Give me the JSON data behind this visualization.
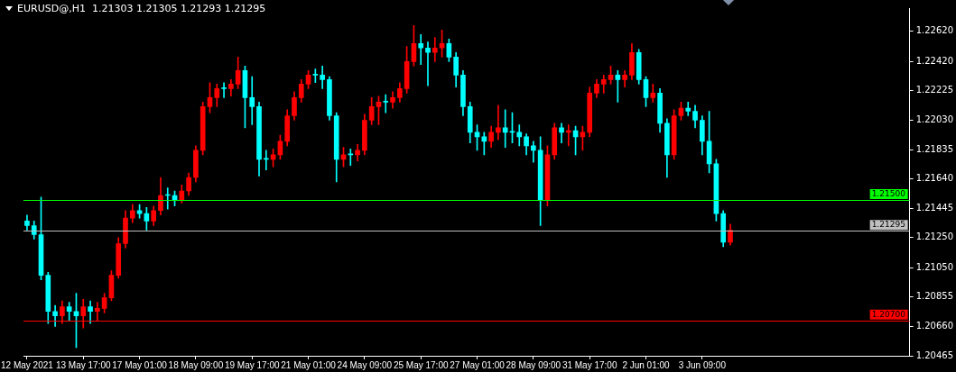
{
  "chart_data": {
    "type": "candlestick",
    "title": "EURUSD@,H1  1.21303 1.21305 1.21293 1.21295",
    "categories": [
      "12 May 2021",
      null,
      null,
      null,
      null,
      null,
      null,
      null,
      "13 May 17:00",
      null,
      null,
      null,
      null,
      null,
      null,
      null,
      "17 May 01:00",
      null,
      null,
      null,
      null,
      null,
      null,
      null,
      "18 May 09:00",
      null,
      null,
      null,
      null,
      null,
      null,
      null,
      "19 May 17:00",
      null,
      null,
      null,
      null,
      null,
      null,
      null,
      "21 May 01:00",
      null,
      null,
      null,
      null,
      null,
      null,
      null,
      "24 May 09:00",
      null,
      null,
      null,
      null,
      null,
      null,
      null,
      "25 May 17:00",
      null,
      null,
      null,
      null,
      null,
      null,
      null,
      "27 May 01:00",
      null,
      null,
      null,
      null,
      null,
      null,
      null,
      "28 May 09:00",
      null,
      null,
      null,
      null,
      null,
      null,
      null,
      "31 May 17:00",
      null,
      null,
      null,
      null,
      null,
      null,
      null,
      "2 Jun 01:00",
      null,
      null,
      null,
      null,
      null,
      null,
      null,
      "3 Jun 09:00",
      null,
      null,
      null,
      null,
      null,
      null,
      null,
      null,
      null,
      null,
      null,
      null,
      null,
      null,
      null,
      null,
      null,
      null,
      null,
      null,
      null,
      null,
      null,
      null,
      null,
      null,
      null,
      null,
      null
    ],
    "ohlc": [
      [
        1.2136,
        1.214,
        1.213,
        1.2133
      ],
      [
        1.2133,
        1.2136,
        1.2124,
        1.2127
      ],
      [
        1.2127,
        1.2152,
        1.2097,
        1.21
      ],
      [
        1.21,
        1.2102,
        1.2068,
        1.2076
      ],
      [
        1.2076,
        1.208,
        1.2066,
        1.2073
      ],
      [
        1.2073,
        1.2083,
        1.2068,
        1.2079
      ],
      [
        1.2079,
        1.2082,
        1.207,
        1.2076
      ],
      [
        1.2076,
        1.2088,
        1.2052,
        1.2073
      ],
      [
        1.2073,
        1.2084,
        1.2065,
        1.2079
      ],
      [
        1.2079,
        1.2083,
        1.2068,
        1.2076
      ],
      [
        1.2076,
        1.2082,
        1.207,
        1.2078
      ],
      [
        1.2078,
        1.2088,
        1.2075,
        1.2085
      ],
      [
        1.2085,
        1.2103,
        1.2083,
        1.21
      ],
      [
        1.21,
        1.2125,
        1.2098,
        1.2121
      ],
      [
        1.2121,
        1.2143,
        1.2118,
        1.2138
      ],
      [
        1.2138,
        1.2147,
        1.2135,
        1.2143
      ],
      [
        1.2143,
        1.2147,
        1.2138,
        1.2141
      ],
      [
        1.2141,
        1.2145,
        1.213,
        1.2136
      ],
      [
        1.2136,
        1.2146,
        1.2133,
        1.2143
      ],
      [
        1.2143,
        1.2165,
        1.214,
        1.2153
      ],
      [
        1.2153,
        1.2158,
        1.2144,
        1.2153
      ],
      [
        1.2153,
        1.2156,
        1.2146,
        1.215
      ],
      [
        1.215,
        1.216,
        1.2148,
        1.2156
      ],
      [
        1.2156,
        1.2168,
        1.2153,
        1.2165
      ],
      [
        1.2165,
        1.2186,
        1.2162,
        1.2183
      ],
      [
        1.2183,
        1.2215,
        1.218,
        1.2212
      ],
      [
        1.2212,
        1.2228,
        1.2208,
        1.2218
      ],
      [
        1.2218,
        1.2227,
        1.2212,
        1.2224
      ],
      [
        1.2224,
        1.2228,
        1.2218,
        1.2224
      ],
      [
        1.2224,
        1.223,
        1.2219,
        1.2227
      ],
      [
        1.2227,
        1.2245,
        1.2224,
        1.2236
      ],
      [
        1.2236,
        1.2239,
        1.2198,
        1.2218
      ],
      [
        1.2218,
        1.2232,
        1.22,
        1.2212
      ],
      [
        1.2212,
        1.2215,
        1.2166,
        1.2177
      ],
      [
        1.2177,
        1.2183,
        1.217,
        1.2177
      ],
      [
        1.2177,
        1.2184,
        1.2172,
        1.218
      ],
      [
        1.218,
        1.2193,
        1.2177,
        1.2189
      ],
      [
        1.2189,
        1.221,
        1.2186,
        1.2206
      ],
      [
        1.2206,
        1.2222,
        1.2203,
        1.2218
      ],
      [
        1.2218,
        1.223,
        1.2215,
        1.2227
      ],
      [
        1.2227,
        1.2236,
        1.2224,
        1.2233
      ],
      [
        1.2233,
        1.2237,
        1.2228,
        1.2233
      ],
      [
        1.2233,
        1.2239,
        1.2224,
        1.223
      ],
      [
        1.223,
        1.2232,
        1.2203,
        1.2206
      ],
      [
        1.2206,
        1.2208,
        1.2162,
        1.2177
      ],
      [
        1.2177,
        1.2185,
        1.2172,
        1.218
      ],
      [
        1.218,
        1.2184,
        1.2173,
        1.218
      ],
      [
        1.218,
        1.2187,
        1.2176,
        1.2183
      ],
      [
        1.2183,
        1.2207,
        1.218,
        1.2203
      ],
      [
        1.2203,
        1.2218,
        1.22,
        1.2212
      ],
      [
        1.2212,
        1.2219,
        1.22,
        1.2215
      ],
      [
        1.2215,
        1.222,
        1.2208,
        1.2215
      ],
      [
        1.2215,
        1.2222,
        1.2211,
        1.2218
      ],
      [
        1.2218,
        1.2228,
        1.2215,
        1.2224
      ],
      [
        1.2224,
        1.2252,
        1.2221,
        1.2242
      ],
      [
        1.2242,
        1.2266,
        1.2239,
        1.2254
      ],
      [
        1.2254,
        1.226,
        1.224,
        1.2251
      ],
      [
        1.2251,
        1.2255,
        1.2226,
        1.2248
      ],
      [
        1.2248,
        1.2258,
        1.2242,
        1.2251
      ],
      [
        1.2251,
        1.2263,
        1.2245,
        1.2254
      ],
      [
        1.2254,
        1.2257,
        1.2242,
        1.2245
      ],
      [
        1.2245,
        1.2248,
        1.2225,
        1.2233
      ],
      [
        1.2233,
        1.2236,
        1.2206,
        1.2212
      ],
      [
        1.2212,
        1.2215,
        1.2188,
        1.2195
      ],
      [
        1.2195,
        1.22,
        1.2183,
        1.2192
      ],
      [
        1.2192,
        1.2195,
        1.218,
        1.2189
      ],
      [
        1.2189,
        1.2199,
        1.2185,
        1.2195
      ],
      [
        1.2195,
        1.2213,
        1.219,
        1.2198
      ],
      [
        1.2198,
        1.221,
        1.2185,
        1.2195
      ],
      [
        1.2195,
        1.2208,
        1.2188,
        1.2195
      ],
      [
        1.2195,
        1.22,
        1.2186,
        1.2192
      ],
      [
        1.2192,
        1.2194,
        1.218,
        1.2186
      ],
      [
        1.2186,
        1.2189,
        1.2175,
        1.2183
      ],
      [
        1.2183,
        1.2192,
        1.2133,
        1.215
      ],
      [
        1.215,
        1.2186,
        1.2146,
        1.218
      ],
      [
        1.218,
        1.2201,
        1.2177,
        1.2198
      ],
      [
        1.2198,
        1.2201,
        1.2188,
        1.2195
      ],
      [
        1.2195,
        1.22,
        1.2186,
        1.2196
      ],
      [
        1.2196,
        1.2199,
        1.218,
        1.2192
      ],
      [
        1.2192,
        1.2199,
        1.2183,
        1.2195
      ],
      [
        1.2195,
        1.2225,
        1.2192,
        1.2221
      ],
      [
        1.2221,
        1.223,
        1.2218,
        1.2227
      ],
      [
        1.2227,
        1.2233,
        1.2221,
        1.223
      ],
      [
        1.223,
        1.2239,
        1.2227,
        1.2233
      ],
      [
        1.2233,
        1.2236,
        1.2215,
        1.223
      ],
      [
        1.223,
        1.2236,
        1.2225,
        1.2233
      ],
      [
        1.2233,
        1.2254,
        1.223,
        1.2248
      ],
      [
        1.2248,
        1.225,
        1.2227,
        1.223
      ],
      [
        1.223,
        1.2232,
        1.2212,
        1.2218
      ],
      [
        1.2218,
        1.2227,
        1.2215,
        1.2221
      ],
      [
        1.2221,
        1.2224,
        1.2195,
        1.2201
      ],
      [
        1.2201,
        1.2204,
        1.2165,
        1.218
      ],
      [
        1.218,
        1.221,
        1.2177,
        1.2206
      ],
      [
        1.2206,
        1.2215,
        1.2203,
        1.2211
      ],
      [
        1.2211,
        1.2215,
        1.2206,
        1.2209
      ],
      [
        1.2209,
        1.2213,
        1.2198,
        1.2203
      ],
      [
        1.2203,
        1.2206,
        1.218,
        1.2189
      ],
      [
        1.2189,
        1.2209,
        1.2168,
        1.2174
      ],
      [
        1.2174,
        1.2177,
        1.2136,
        1.2141
      ],
      [
        1.2141,
        1.2143,
        1.2119,
        1.2122
      ],
      [
        1.2122,
        1.2134,
        1.212,
        1.213
      ],
      null,
      null,
      null,
      null,
      null,
      null,
      null,
      null,
      null,
      null,
      null,
      null,
      null,
      null,
      null,
      null,
      null,
      null,
      null,
      null,
      null,
      null,
      null,
      null,
      null
    ],
    "colors": [
      "#00ffff",
      "#00ffff",
      "#00ffff",
      "#00ffff",
      "#00ffff",
      "#ff0000",
      "#00ffff",
      "#00ffff",
      "#ff0000",
      "#00ffff",
      "#ff0000",
      "#ff0000",
      "#ff0000",
      "#ff0000",
      "#ff0000",
      "#ff0000",
      "#00ffff",
      "#00ffff",
      "#ff0000",
      "#ff0000",
      "#00ffff",
      "#00ffff",
      "#ff0000",
      "#ff0000",
      "#ff0000",
      "#ff0000",
      "#ff0000",
      "#ff0000",
      "#00ffff",
      "#ff0000",
      "#ff0000",
      "#00ffff",
      "#00ffff",
      "#00ffff",
      "#00ffff",
      "#ff0000",
      "#ff0000",
      "#ff0000",
      "#ff0000",
      "#ff0000",
      "#ff0000",
      "#00ffff",
      "#00ffff",
      "#00ffff",
      "#00ffff",
      "#ff0000",
      "#00ffff",
      "#ff0000",
      "#ff0000",
      "#ff0000",
      "#ff0000",
      "#00ffff",
      "#ff0000",
      "#ff0000",
      "#ff0000",
      "#ff0000",
      "#00ffff",
      "#00ffff",
      "#ff0000",
      "#ff0000",
      "#00ffff",
      "#00ffff",
      "#00ffff",
      "#00ffff",
      "#00ffff",
      "#00ffff",
      "#ff0000",
      "#ff0000",
      "#00ffff",
      "#00ffff",
      "#00ffff",
      "#00ffff",
      "#00ffff",
      "#00ffff",
      "#ff0000",
      "#ff0000",
      "#00ffff",
      "#ff0000",
      "#00ffff",
      "#ff0000",
      "#ff0000",
      "#ff0000",
      "#ff0000",
      "#ff0000",
      "#00ffff",
      "#ff0000",
      "#ff0000",
      "#00ffff",
      "#00ffff",
      "#ff0000",
      "#00ffff",
      "#00ffff",
      "#ff0000",
      "#ff0000",
      "#00ffff",
      "#00ffff",
      "#00ffff",
      "#00ffff",
      "#00ffff",
      "#00ffff",
      "#ff0000",
      null,
      null,
      null,
      null,
      null,
      null,
      null,
      null,
      null,
      null,
      null,
      null,
      null,
      null,
      null,
      null,
      null,
      null,
      null,
      null,
      null,
      null,
      null,
      null,
      null
    ],
    "ylim": [
      1.20465,
      1.22775
    ],
    "yticks": [
      {
        "value": 1.2262,
        "label": "1.22620"
      },
      {
        "value": 1.2242,
        "label": "1.22420"
      },
      {
        "value": 1.22225,
        "label": "1.22225"
      },
      {
        "value": 1.2203,
        "label": "1.22030"
      },
      {
        "value": 1.21835,
        "label": "1.21835"
      },
      {
        "value": 1.2164,
        "label": "1.21640"
      },
      {
        "value": 1.21445,
        "label": "1.21445"
      },
      {
        "value": 1.2125,
        "label": "1.21250"
      },
      {
        "value": 1.2105,
        "label": "1.21050"
      },
      {
        "value": 1.20855,
        "label": "1.20855"
      },
      {
        "value": 1.2066,
        "label": "1.20660"
      },
      {
        "value": 1.20465,
        "label": "1.20465"
      }
    ],
    "ref_lines": [
      {
        "axis": "y",
        "value": 1.215,
        "label": "1.21500",
        "color": "#00ff00"
      },
      {
        "axis": "y",
        "value": 1.21295,
        "label": "1.21295",
        "color": "#c0c0c0"
      },
      {
        "axis": "y",
        "value": 1.207,
        "label": "1.20700",
        "color": "#ff0000"
      }
    ]
  }
}
